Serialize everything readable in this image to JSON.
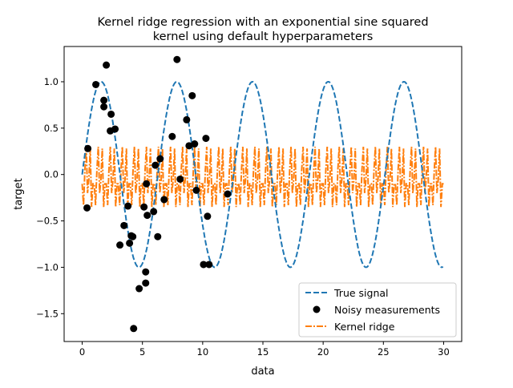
{
  "chart_data": {
    "type": "scatter",
    "title_line1": "Kernel ridge regression with an exponential sine squared",
    "title_line2": "kernel using default hyperparameters",
    "xlabel": "data",
    "ylabel": "target",
    "xlim": [
      -1.5,
      31.5
    ],
    "ylim": [
      -1.8,
      1.38
    ],
    "xticks": [
      0,
      5,
      10,
      15,
      20,
      25,
      30
    ],
    "xtick_labels": [
      "0",
      "5",
      "10",
      "15",
      "20",
      "25",
      "30"
    ],
    "yticks": [
      -1.5,
      -1.0,
      -0.5,
      0.0,
      0.5,
      1.0
    ],
    "ytick_labels": [
      "−1.5",
      "−1.0",
      "−0.5",
      "0.0",
      "0.5",
      "1.0"
    ],
    "grid": false,
    "legend_placement": "bottom-right",
    "series": [
      {
        "name": "True signal",
        "kind": "line",
        "style": "dashed",
        "color": "#1f77b4",
        "function": "sin(x)",
        "x_range": [
          0,
          30
        ]
      },
      {
        "name": "Noisy measurements",
        "kind": "scatter",
        "color": "#000000",
        "x": [
          0.47,
          0.4,
          1.13,
          2.0,
          1.8,
          1.8,
          2.4,
          2.33,
          2.73,
          3.13,
          3.47,
          3.8,
          3.93,
          4.07,
          4.2,
          4.27,
          4.73,
          5.27,
          5.27,
          5.13,
          5.33,
          5.4,
          5.93,
          6.07,
          6.27,
          6.47,
          6.8,
          7.47,
          7.87,
          8.13,
          8.67,
          8.87,
          9.13,
          9.33,
          9.47,
          10.07,
          10.27,
          10.4,
          10.53,
          12.07
        ],
        "y": [
          0.28,
          -0.36,
          0.97,
          1.18,
          0.8,
          0.73,
          0.65,
          0.47,
          0.49,
          -0.76,
          -0.55,
          -0.34,
          -0.74,
          -0.66,
          -0.67,
          -1.66,
          -1.23,
          -1.05,
          -1.17,
          -0.35,
          -0.1,
          -0.44,
          -0.4,
          0.1,
          -0.67,
          0.17,
          -0.27,
          0.41,
          1.24,
          -0.05,
          0.59,
          0.31,
          0.85,
          0.33,
          -0.17,
          -0.97,
          0.39,
          -0.45,
          -0.97,
          -0.21
        ]
      },
      {
        "name": "Kernel ridge",
        "kind": "line",
        "style": "dashdot",
        "color": "#ff7f0e",
        "x_range": [
          0,
          30
        ],
        "period": 1.0,
        "pattern": [
          -0.1,
          -0.33,
          0.05,
          0.3,
          -0.2,
          -0.05,
          0.28,
          -0.35,
          -0.1
        ]
      }
    ]
  }
}
